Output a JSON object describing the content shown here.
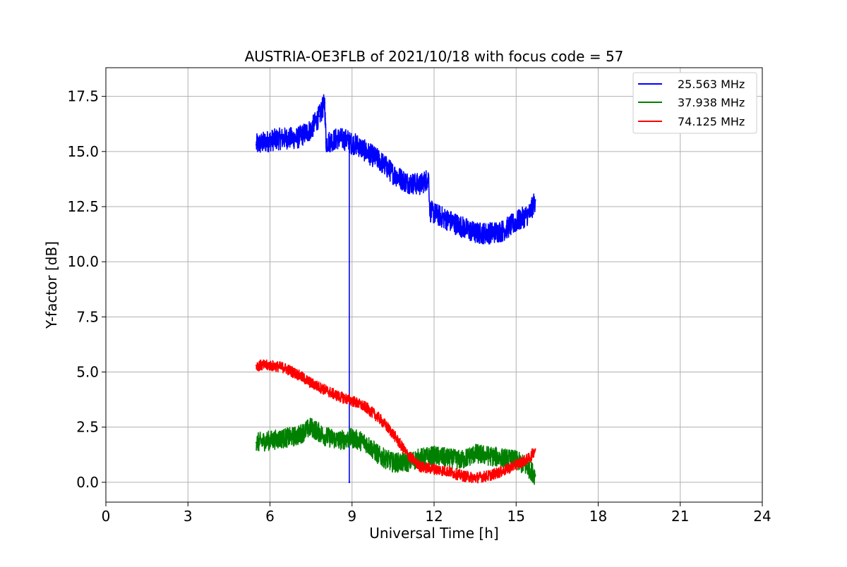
{
  "chart_data": {
    "type": "line",
    "title": "AUSTRIA-OE3FLB of 2021/10/18 with focus code = 57",
    "xlabel": "Universal Time [h]",
    "ylabel": "Y-factor [dB]",
    "xlim": [
      0,
      24
    ],
    "ylim": [
      -0.9,
      18.8
    ],
    "xticks": [
      0,
      3,
      6,
      9,
      12,
      15,
      18,
      21,
      24
    ],
    "xtick_labels": [
      "0",
      "3",
      "6",
      "9",
      "12",
      "15",
      "18",
      "21",
      "24"
    ],
    "yticks": [
      0.0,
      2.5,
      5.0,
      7.5,
      10.0,
      12.5,
      15.0,
      17.5
    ],
    "ytick_labels": [
      "0.0",
      "2.5",
      "5.0",
      "7.5",
      "10.0",
      "12.5",
      "15.0",
      "17.5"
    ],
    "grid": true,
    "legend_position": "top-right",
    "series": [
      {
        "name": "25.563 MHz",
        "color": "#0000ff",
        "noise": 0.5,
        "x": [
          5.5,
          6.0,
          6.5,
          7.0,
          7.5,
          7.8,
          8.0,
          8.05,
          8.5,
          8.9,
          8.9,
          8.9,
          9.2,
          9.5,
          10.0,
          10.5,
          11.0,
          11.5,
          11.8,
          11.85,
          12.0,
          12.5,
          13.0,
          13.5,
          14.0,
          14.5,
          15.0,
          15.5,
          15.7
        ],
        "y": [
          15.3,
          15.5,
          15.6,
          15.6,
          16.0,
          16.6,
          17.2,
          15.4,
          15.6,
          15.5,
          0.0,
          15.4,
          15.3,
          15.0,
          14.6,
          14.0,
          13.6,
          13.5,
          13.8,
          12.3,
          12.2,
          11.9,
          11.6,
          11.3,
          11.3,
          11.4,
          11.8,
          12.2,
          12.8
        ]
      },
      {
        "name": "37.938 MHz",
        "color": "#008000",
        "noise": 0.45,
        "x": [
          5.5,
          6.0,
          6.5,
          7.0,
          7.5,
          8.0,
          8.5,
          9.0,
          9.5,
          10.0,
          10.5,
          11.0,
          11.5,
          12.0,
          12.5,
          13.0,
          13.5,
          14.0,
          14.5,
          15.0,
          15.5,
          15.7
        ],
        "y": [
          1.8,
          1.9,
          2.0,
          2.1,
          2.5,
          2.1,
          1.9,
          2.0,
          1.8,
          1.2,
          0.9,
          0.9,
          1.1,
          1.2,
          1.1,
          1.0,
          1.3,
          1.2,
          1.1,
          1.0,
          0.6,
          0.3
        ]
      },
      {
        "name": "74.125 MHz",
        "color": "#ff0000",
        "noise": 0.25,
        "x": [
          5.5,
          6.0,
          6.5,
          7.0,
          7.5,
          8.0,
          8.5,
          9.0,
          9.5,
          10.0,
          10.5,
          11.0,
          11.5,
          12.0,
          12.5,
          13.0,
          13.5,
          14.0,
          14.5,
          15.0,
          15.5,
          15.7
        ],
        "y": [
          5.3,
          5.3,
          5.2,
          4.9,
          4.5,
          4.2,
          3.9,
          3.7,
          3.4,
          2.9,
          2.2,
          1.3,
          0.7,
          0.6,
          0.5,
          0.3,
          0.2,
          0.3,
          0.5,
          0.8,
          1.1,
          1.5
        ]
      }
    ]
  }
}
